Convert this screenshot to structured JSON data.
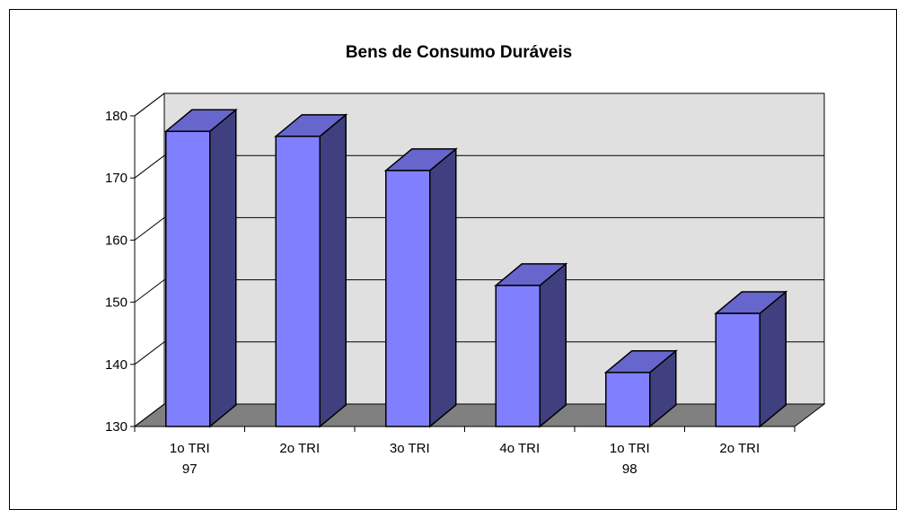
{
  "chart_data": {
    "type": "bar3d",
    "title": "Bens de Consumo Duráveis",
    "categories": [
      "1o TRI\n97",
      "2o TRI",
      "3o TRI",
      "4o TRI",
      "1o TRI\n98",
      "2o TRI"
    ],
    "values": [
      177.5,
      176.7,
      171.2,
      152.7,
      138.7,
      148.2
    ],
    "color": "#8080ff",
    "ylim": [
      130,
      180
    ],
    "yticks": [
      130,
      140,
      150,
      160,
      170,
      180
    ],
    "grid": true
  }
}
